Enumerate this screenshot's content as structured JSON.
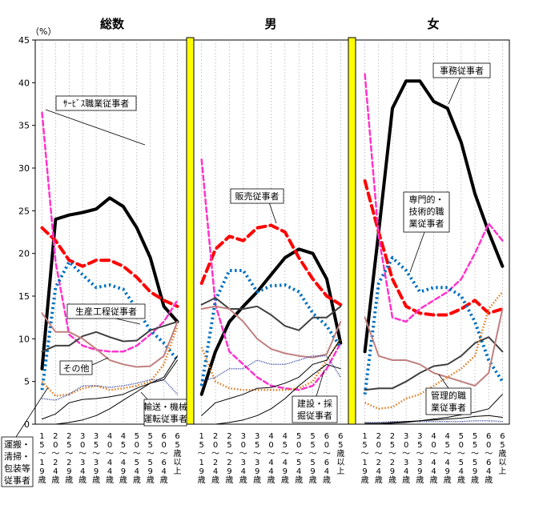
{
  "chart_data": {
    "type": "line",
    "y_unit_label": "（%）",
    "ylim": [
      0,
      45
    ],
    "y_ticks": [
      "0",
      "5",
      "10",
      "15",
      "20",
      "25",
      "30",
      "35",
      "40",
      "45"
    ],
    "categories": [
      [
        "1",
        "5",
        "～",
        "1",
        "9",
        "歳"
      ],
      [
        "2",
        "0",
        "～",
        "2",
        "4",
        "歳"
      ],
      [
        "2",
        "5",
        "～",
        "2",
        "9",
        "歳"
      ],
      [
        "3",
        "0",
        "～",
        "3",
        "4",
        "歳"
      ],
      [
        "3",
        "5",
        "～",
        "3",
        "9",
        "歳"
      ],
      [
        "4",
        "0",
        "～",
        "4",
        "4",
        "歳"
      ],
      [
        "4",
        "5",
        "～",
        "4",
        "9",
        "歳"
      ],
      [
        "5",
        "0",
        "～",
        "5",
        "4",
        "歳"
      ],
      [
        "5",
        "5",
        "～",
        "5",
        "9",
        "歳"
      ],
      [
        "6",
        "0",
        "～",
        "6",
        "4",
        "歳"
      ],
      [
        "6",
        "5",
        "歳",
        "以",
        "上"
      ]
    ],
    "panels": [
      {
        "title": "総数",
        "series": [
          {
            "name": "事務従事者",
            "color": "#000000",
            "style": "solid",
            "width": 4,
            "values": [
              6.5,
              24,
              24.5,
              24.8,
              25.2,
              26.5,
              25.5,
              23,
              19.5,
              13.8,
              12
            ]
          },
          {
            "name": "販売従事者",
            "color": "#ff0000",
            "style": "dashed",
            "width": 4,
            "values": [
              23,
              21.5,
              19.2,
              18.5,
              19.2,
              19.2,
              18.5,
              17.2,
              15.5,
              14.5,
              13.8
            ]
          },
          {
            "name": "サービス職業従事者",
            "color": "#ff33cc",
            "style": "dashed",
            "width": 2.5,
            "values": [
              36.5,
              19,
              10.5,
              9.2,
              8.7,
              8.5,
              8.5,
              9.2,
              10.5,
              12,
              14.5
            ]
          },
          {
            "name": "専門的・技術的職業従事者",
            "color": "#0070c0",
            "style": "dotted",
            "width": 4,
            "values": [
              4,
              16,
              19,
              17.5,
              16,
              16.3,
              15.8,
              13.5,
              11,
              9.5,
              7.5
            ]
          },
          {
            "name": "生産工程従事者",
            "color": "#404040",
            "style": "solid",
            "width": 2,
            "values": [
              8.5,
              9.2,
              9.2,
              10.3,
              10.8,
              10.2,
              9.7,
              9.8,
              11,
              11.5,
              12
            ]
          },
          {
            "name": "その他",
            "color": "#c08080",
            "style": "solid",
            "width": 2,
            "values": [
              13,
              10.8,
              10.8,
              10,
              8.8,
              7.5,
              7,
              6.7,
              6.8,
              8,
              12
            ]
          },
          {
            "name": "運搬・清掃・包装等従事者",
            "color": "#e07b20",
            "style": "dotted",
            "width": 2.5,
            "values": [
              5,
              3.3,
              3.5,
              4.2,
              4.5,
              4,
              4.2,
              4.5,
              5,
              7,
              11.5
            ]
          },
          {
            "name": "輸送・機械運転従事者",
            "color": "#1f2f8a",
            "style": "dotted",
            "width": 1.5,
            "values": [
              3,
              2.8,
              3.5,
              4.5,
              4.5,
              4.3,
              4.5,
              4.8,
              5.2,
              5.2,
              3.5
            ]
          },
          {
            "name": "建設・採掘従事者",
            "color": "#000000",
            "style": "solid",
            "width": 1,
            "values": [
              0.6,
              1.2,
              2.5,
              2.9,
              3,
              3.2,
              3.5,
              4.2,
              4.8,
              5.2,
              7.5
            ]
          },
          {
            "name": "管理的職業従事者",
            "color": "#000000",
            "style": "solid",
            "width": 1,
            "values": [
              0,
              0,
              0.2,
              0.5,
              1,
              1.8,
              2.8,
              3.8,
              4.8,
              5.5,
              8
            ]
          }
        ]
      },
      {
        "title": "男",
        "series": [
          {
            "name": "事務従事者",
            "color": "#000000",
            "style": "solid",
            "width": 4,
            "values": [
              3.5,
              8.5,
              12,
              13.8,
              15.5,
              17.5,
              19.5,
              20.5,
              20,
              17,
              9.5
            ]
          },
          {
            "name": "販売従事者",
            "color": "#ff0000",
            "style": "dashed",
            "width": 4,
            "values": [
              16.5,
              20.5,
              22,
              21.5,
              23,
              23.3,
              22.5,
              19.5,
              17,
              15,
              14
            ]
          },
          {
            "name": "サービス職業従事者",
            "color": "#ff33cc",
            "style": "dashed",
            "width": 2.5,
            "values": [
              31,
              14,
              8.5,
              7,
              5.5,
              4.5,
              4.2,
              4,
              4.5,
              6.5,
              9.5
            ]
          },
          {
            "name": "専門的・技術的職業従事者",
            "color": "#0070c0",
            "style": "dotted",
            "width": 4,
            "values": [
              4.5,
              14.5,
              18,
              18,
              15.5,
              16.2,
              16.3,
              15.5,
              13,
              11.5,
              9
            ]
          },
          {
            "name": "生産工程従事者",
            "color": "#404040",
            "style": "solid",
            "width": 2,
            "values": [
              14,
              14.8,
              13.5,
              13.5,
              13.8,
              12.8,
              11.5,
              11,
              12.5,
              12.5,
              13.8
            ]
          },
          {
            "name": "その他",
            "color": "#c08080",
            "style": "solid",
            "width": 2,
            "values": [
              13.5,
              13.8,
              13.5,
              12,
              10,
              8.8,
              8.3,
              8,
              7.8,
              8.2,
              12
            ]
          },
          {
            "name": "運搬・清掃・包装等従事者",
            "color": "#e07b20",
            "style": "dotted",
            "width": 2.5,
            "values": [
              9,
              5,
              4.2,
              4,
              4,
              4,
              4,
              4.2,
              5,
              7.5,
              10
            ]
          },
          {
            "name": "輸送・機械運転従事者",
            "color": "#1f2f8a",
            "style": "dotted",
            "width": 1.5,
            "values": [
              5,
              5.5,
              6.5,
              6.5,
              7.5,
              7,
              7,
              7.5,
              8,
              8,
              5.5
            ]
          },
          {
            "name": "建設・採掘従事者",
            "color": "#000000",
            "style": "solid",
            "width": 1,
            "values": [
              1,
              2.5,
              3,
              3.5,
              4.2,
              4.3,
              4.8,
              5.5,
              7,
              7.5,
              10
            ]
          },
          {
            "name": "管理的職業従事者",
            "color": "#000000",
            "style": "solid",
            "width": 1,
            "values": [
              0,
              0,
              0.2,
              0.5,
              1,
              1.8,
              3,
              4.5,
              5.8,
              7,
              6.5
            ]
          }
        ]
      },
      {
        "title": "女",
        "series": [
          {
            "name": "事務従事者",
            "color": "#000000",
            "style": "solid",
            "width": 4,
            "values": [
              8.5,
              22.5,
              37,
              40.2,
              40.2,
              37.8,
              37,
              33,
              27,
              22.5,
              18.5
            ]
          },
          {
            "name": "販売従事者",
            "color": "#ff0000",
            "style": "dashed",
            "width": 4,
            "values": [
              28.5,
              22.5,
              17,
              13.8,
              13,
              12.8,
              12.8,
              13.5,
              14.5,
              13,
              13.5
            ]
          },
          {
            "name": "サービス職業従事者",
            "color": "#ff33cc",
            "style": "dashed",
            "width": 2.5,
            "values": [
              41,
              22,
              12.5,
              12,
              13.5,
              14.5,
              15.5,
              17,
              20,
              23.5,
              21.5
            ]
          },
          {
            "name": "専門的・技術的職業従事者",
            "color": "#0070c0",
            "style": "dotted",
            "width": 4,
            "values": [
              3.5,
              16.5,
              19.5,
              18,
              15.5,
              16,
              16,
              15,
              12,
              7.5,
              5
            ]
          },
          {
            "name": "生産工程従事者",
            "color": "#404040",
            "style": "solid",
            "width": 2,
            "values": [
              4,
              4.2,
              4.2,
              5,
              6,
              6.8,
              7,
              8,
              9.5,
              10.2,
              8.5
            ]
          },
          {
            "name": "その他",
            "color": "#c08080",
            "style": "solid",
            "width": 2,
            "values": [
              12.5,
              8,
              7.5,
              7.5,
              7,
              6,
              5.5,
              5,
              4.5,
              6,
              13.5
            ]
          },
          {
            "name": "運搬・清掃・包装等従事者",
            "color": "#e07b20",
            "style": "dotted",
            "width": 2.5,
            "values": [
              2.5,
              1.8,
              2,
              3,
              3.5,
              4.5,
              5.5,
              6.5,
              8,
              13.5,
              15.5
            ]
          },
          {
            "name": "輸送・機械運転従事者",
            "color": "#1f2f8a",
            "style": "dotted",
            "width": 1.5,
            "values": [
              0.2,
              0.2,
              0.3,
              0.3,
              0.3,
              0.3,
              0.3,
              0.3,
              0.4,
              0.4,
              0.3
            ]
          },
          {
            "name": "建設・採掘従事者",
            "color": "#000000",
            "style": "solid",
            "width": 1,
            "values": [
              0.1,
              0.1,
              0.2,
              0.3,
              0.4,
              0.5,
              0.6,
              0.7,
              0.9,
              1,
              0.8
            ]
          },
          {
            "name": "管理的職業従事者",
            "color": "#000000",
            "style": "solid",
            "width": 1,
            "values": [
              0,
              0,
              0.1,
              0.2,
              0.4,
              0.6,
              0.8,
              1.1,
              1.4,
              1.8,
              3.5
            ]
          }
        ]
      }
    ],
    "annotations": [
      {
        "panel": 0,
        "lines": [
          "ｻｰﾋﾞｽ職業従事者"
        ]
      },
      {
        "panel": 0,
        "lines": [
          "生産工程従事者"
        ]
      },
      {
        "panel": 0,
        "lines": [
          "その他"
        ]
      },
      {
        "panel": 0,
        "lines": [
          "輸送・機械",
          "運転従事者"
        ]
      },
      {
        "panel": -1,
        "lines": [
          "運搬・",
          "清掃・",
          "包装等",
          "従事者"
        ]
      },
      {
        "panel": 1,
        "lines": [
          "販売従事者"
        ]
      },
      {
        "panel": 1,
        "lines": [
          "建設・採",
          "掘従事者"
        ]
      },
      {
        "panel": 2,
        "lines": [
          "事務従事者"
        ]
      },
      {
        "panel": 2,
        "lines": [
          "専門的・",
          "技術的職",
          "業従事者"
        ]
      },
      {
        "panel": 2,
        "lines": [
          "管理的職",
          "業従事者"
        ]
      }
    ]
  }
}
